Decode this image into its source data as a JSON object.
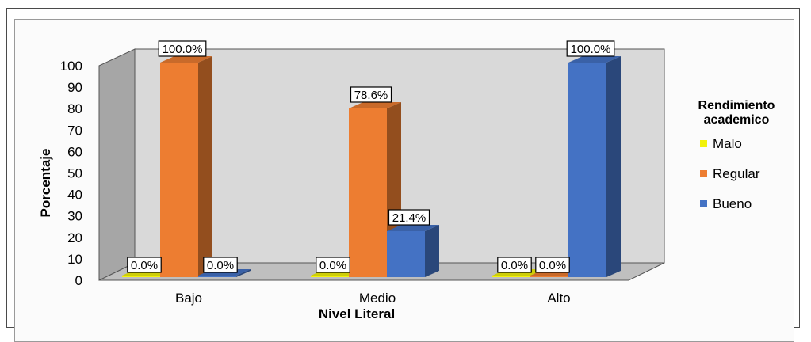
{
  "chart_data": {
    "type": "bar",
    "three_d": true,
    "categories": [
      "Bajo",
      "Medio",
      "Alto"
    ],
    "series": [
      {
        "name": "Malo",
        "values": [
          0,
          0,
          0
        ],
        "labels": [
          "0.0%",
          "0.0%",
          "0.0%"
        ],
        "color": "#f2f20a"
      },
      {
        "name": "Regular",
        "values": [
          100,
          78.6,
          0
        ],
        "labels": [
          "100.0%",
          "78.6%",
          "0.0%"
        ],
        "color": "#ed7d31"
      },
      {
        "name": "Bueno",
        "values": [
          0,
          21.4,
          100
        ],
        "labels": [
          "0.0%",
          "21.4%",
          "100.0%"
        ],
        "color": "#4472c4"
      }
    ],
    "xlabel": "Nivel Literal",
    "ylabel": "Porcentaje",
    "ylim": [
      0,
      100
    ],
    "yticks": [
      "0",
      "10",
      "20",
      "30",
      "40",
      "50",
      "60",
      "70",
      "80",
      "90",
      "100"
    ],
    "legend": {
      "title_line1": "Rendimiento",
      "title_line2": "academico",
      "placement": "right"
    },
    "colors": {
      "back_wall": "#d9d9d9",
      "side_wall": "#a6a6a6",
      "floor": "#bfbfbf"
    }
  }
}
